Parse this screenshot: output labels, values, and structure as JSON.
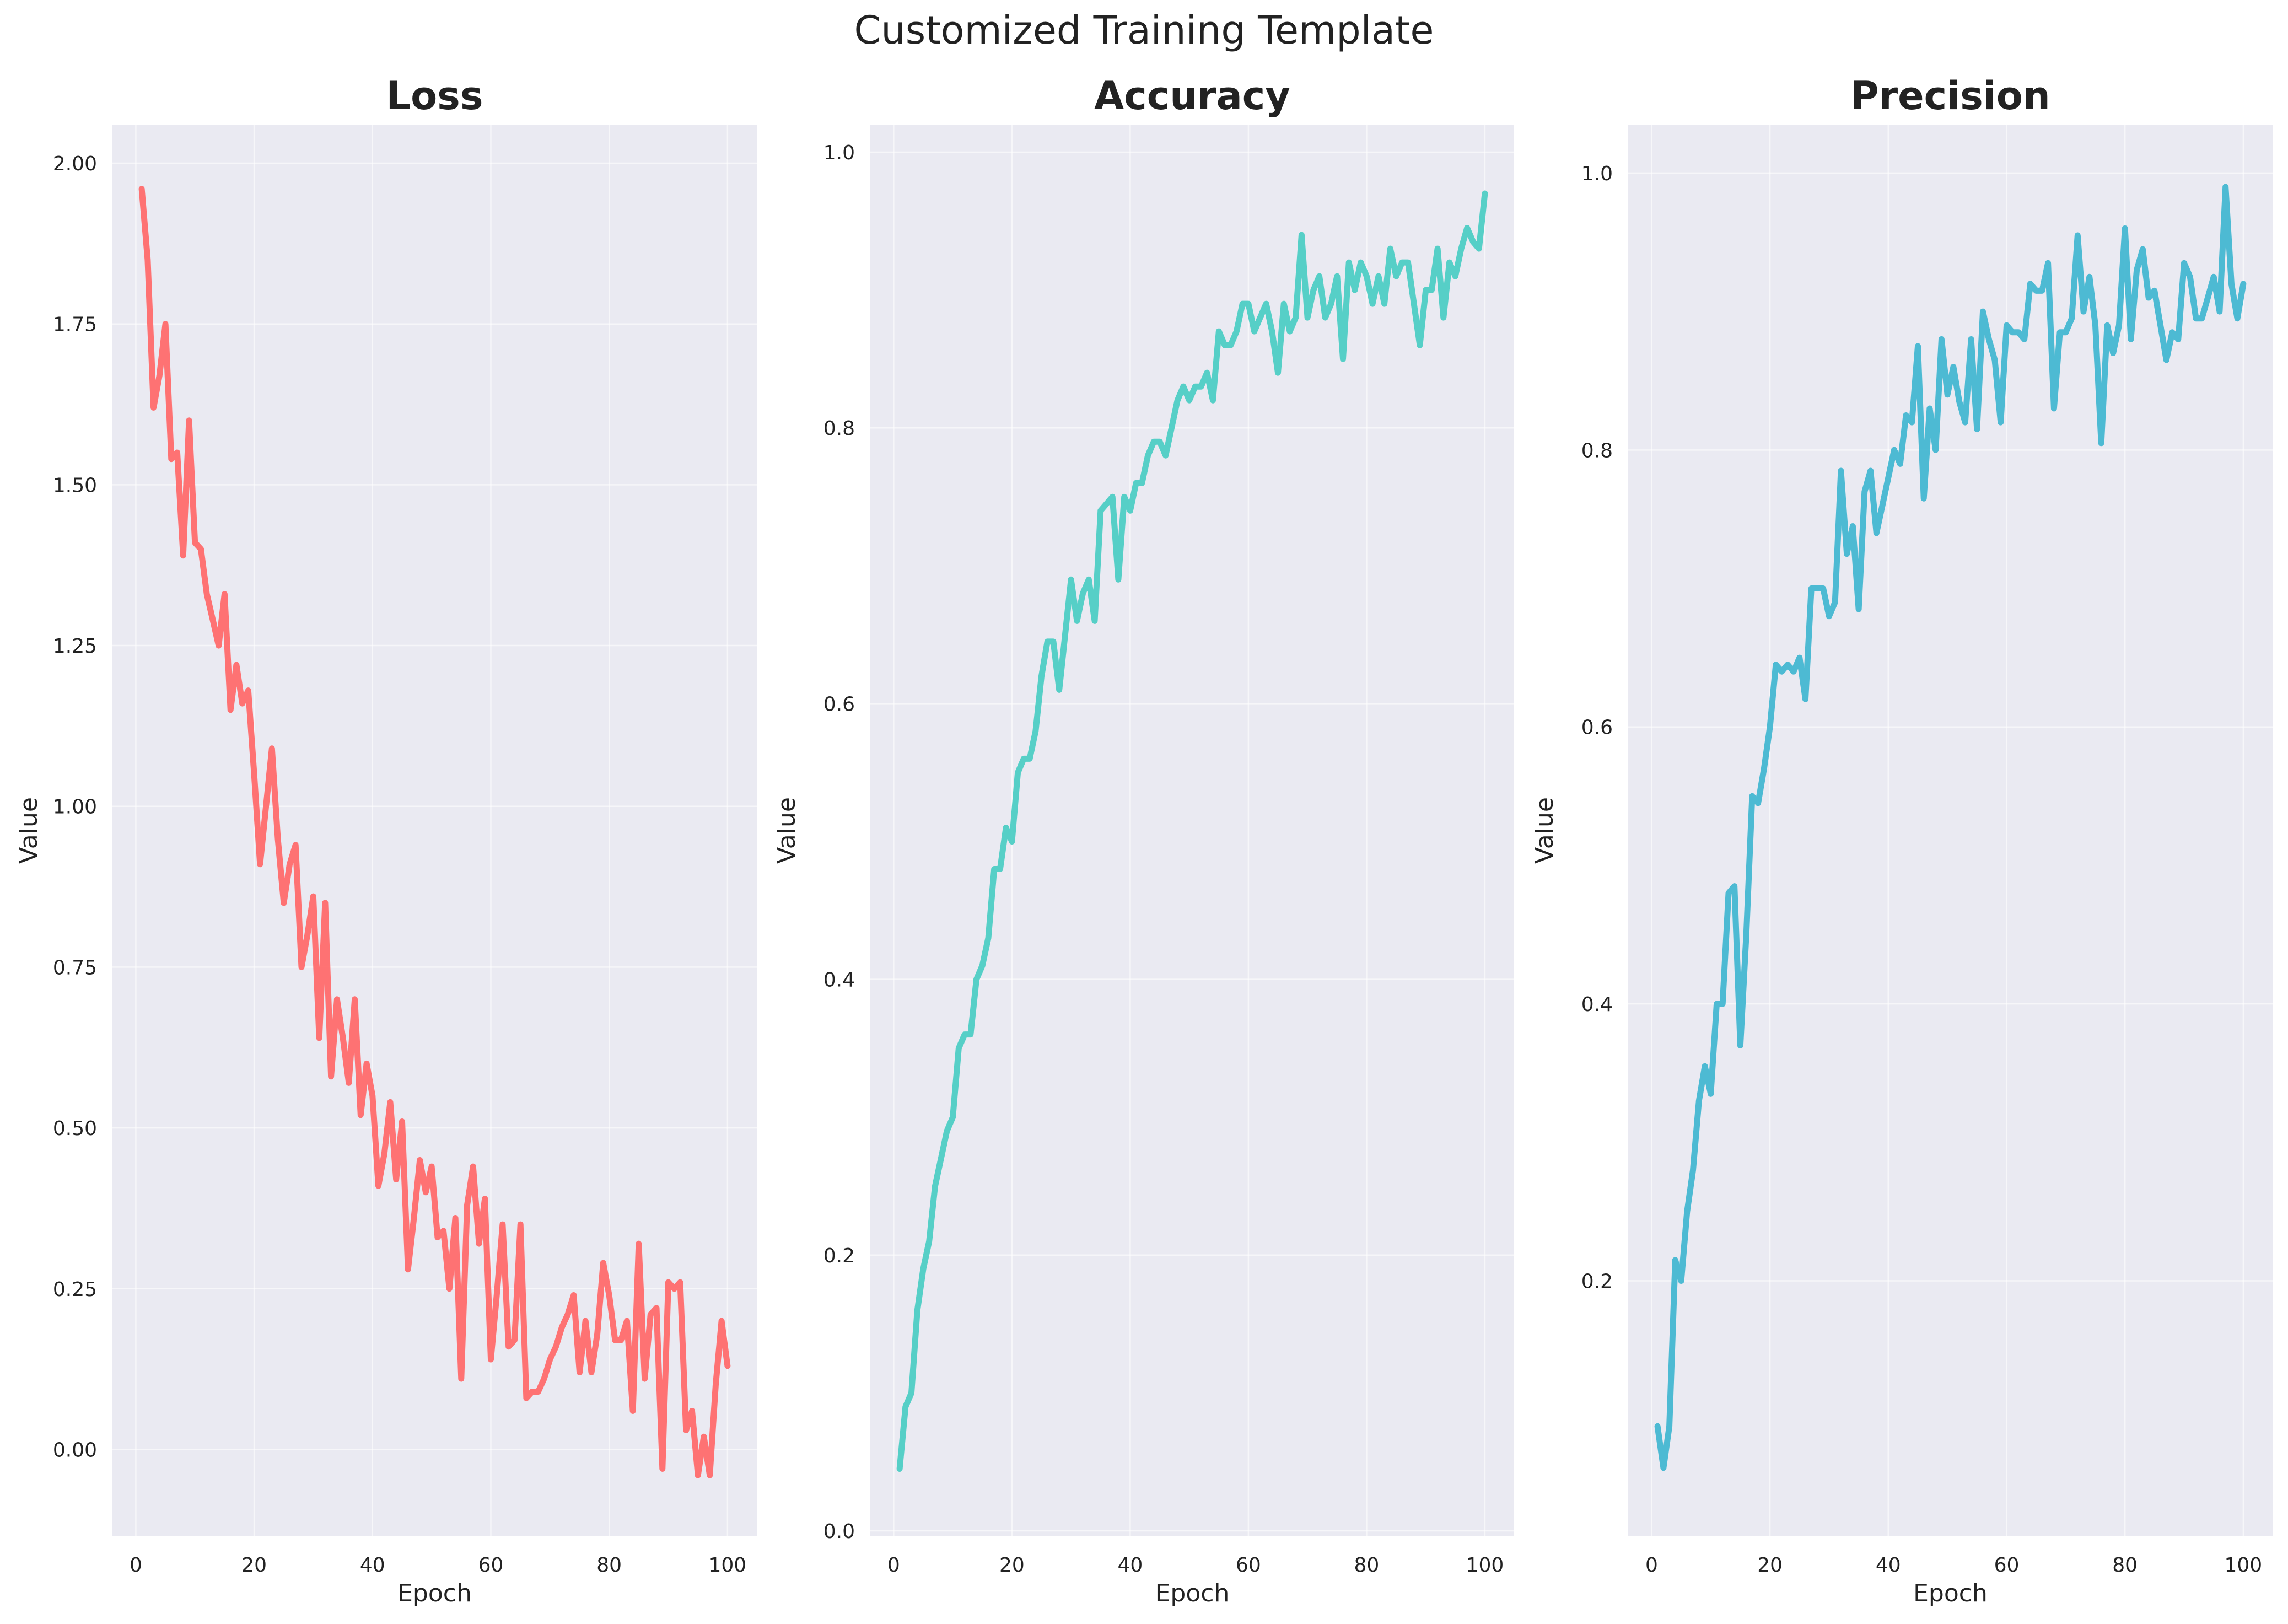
{
  "figure": {
    "suptitle": "Customized Training Template"
  },
  "chart_data": [
    {
      "type": "line",
      "title": "Loss",
      "xlabel": "Epoch",
      "ylabel": "Value",
      "color": "#ff6b6b",
      "grid": true,
      "xlim": [
        -3.95,
        104.95
      ],
      "ylim": [
        -0.135,
        2.06
      ],
      "xticks": [
        0,
        20,
        40,
        60,
        80,
        100
      ],
      "yticks": [
        0.0,
        0.25,
        0.5,
        0.75,
        1.0,
        1.25,
        1.5,
        1.75,
        2.0
      ],
      "ytick_labels": [
        "0.00",
        "0.25",
        "0.50",
        "0.75",
        "1.00",
        "1.25",
        "1.50",
        "1.75",
        "2.00"
      ],
      "x_start": 1,
      "values": [
        1.96,
        1.85,
        1.62,
        1.67,
        1.75,
        1.54,
        1.55,
        1.39,
        1.6,
        1.41,
        1.4,
        1.33,
        1.29,
        1.25,
        1.33,
        1.15,
        1.22,
        1.16,
        1.18,
        1.05,
        0.91,
        1.0,
        1.09,
        0.95,
        0.85,
        0.91,
        0.94,
        0.75,
        0.8,
        0.86,
        0.64,
        0.85,
        0.58,
        0.7,
        0.64,
        0.57,
        0.7,
        0.52,
        0.6,
        0.55,
        0.41,
        0.46,
        0.54,
        0.42,
        0.51,
        0.28,
        0.36,
        0.45,
        0.4,
        0.44,
        0.33,
        0.34,
        0.25,
        0.36,
        0.11,
        0.38,
        0.44,
        0.32,
        0.39,
        0.14,
        0.24,
        0.35,
        0.16,
        0.17,
        0.35,
        0.08,
        0.09,
        0.09,
        0.11,
        0.14,
        0.16,
        0.19,
        0.21,
        0.24,
        0.12,
        0.2,
        0.12,
        0.18,
        0.29,
        0.24,
        0.17,
        0.17,
        0.2,
        0.06,
        0.32,
        0.11,
        0.21,
        0.22,
        -0.03,
        0.26,
        0.25,
        0.26,
        0.03,
        0.06,
        -0.04,
        0.02,
        -0.04,
        0.1,
        0.2,
        0.13
      ]
    },
    {
      "type": "line",
      "title": "Accuracy",
      "xlabel": "Epoch",
      "ylabel": "Value",
      "color": "#4ecdc4",
      "grid": true,
      "xlim": [
        -3.95,
        104.95
      ],
      "ylim": [
        -0.004,
        1.02
      ],
      "xticks": [
        0,
        20,
        40,
        60,
        80,
        100
      ],
      "yticks": [
        0.0,
        0.2,
        0.4,
        0.6,
        0.8,
        1.0
      ],
      "ytick_labels": [
        "0.0",
        "0.2",
        "0.4",
        "0.6",
        "0.8",
        "1.0"
      ],
      "x_start": 1,
      "values": [
        0.045,
        0.09,
        0.1,
        0.16,
        0.19,
        0.21,
        0.25,
        0.27,
        0.29,
        0.3,
        0.35,
        0.36,
        0.36,
        0.4,
        0.41,
        0.43,
        0.48,
        0.48,
        0.51,
        0.5,
        0.55,
        0.56,
        0.56,
        0.58,
        0.62,
        0.645,
        0.645,
        0.61,
        0.65,
        0.69,
        0.66,
        0.68,
        0.69,
        0.66,
        0.74,
        0.745,
        0.75,
        0.69,
        0.75,
        0.74,
        0.76,
        0.76,
        0.78,
        0.79,
        0.79,
        0.78,
        0.8,
        0.82,
        0.83,
        0.82,
        0.83,
        0.83,
        0.84,
        0.82,
        0.87,
        0.86,
        0.86,
        0.87,
        0.89,
        0.89,
        0.87,
        0.88,
        0.89,
        0.87,
        0.84,
        0.89,
        0.87,
        0.88,
        0.94,
        0.88,
        0.9,
        0.91,
        0.88,
        0.89,
        0.91,
        0.85,
        0.92,
        0.9,
        0.92,
        0.91,
        0.89,
        0.91,
        0.89,
        0.93,
        0.91,
        0.92,
        0.92,
        0.89,
        0.86,
        0.9,
        0.9,
        0.93,
        0.88,
        0.92,
        0.91,
        0.93,
        0.945,
        0.935,
        0.93,
        0.97
      ]
    },
    {
      "type": "line",
      "title": "Precision",
      "xlabel": "Epoch",
      "ylabel": "Value",
      "color": "#45b7d1",
      "grid": true,
      "xlim": [
        -3.95,
        104.95
      ],
      "ylim": [
        0.0155,
        1.035
      ],
      "xticks": [
        0,
        20,
        40,
        60,
        80,
        100
      ],
      "yticks": [
        0.2,
        0.4,
        0.6,
        0.8,
        1.0
      ],
      "ytick_labels": [
        "0.2",
        "0.4",
        "0.6",
        "0.8",
        "1.0"
      ],
      "x_start": 1,
      "values": [
        0.095,
        0.065,
        0.095,
        0.215,
        0.2,
        0.25,
        0.28,
        0.33,
        0.355,
        0.335,
        0.4,
        0.4,
        0.48,
        0.485,
        0.37,
        0.45,
        0.55,
        0.545,
        0.57,
        0.6,
        0.645,
        0.64,
        0.645,
        0.64,
        0.65,
        0.62,
        0.7,
        0.7,
        0.7,
        0.68,
        0.69,
        0.785,
        0.725,
        0.745,
        0.685,
        0.77,
        0.785,
        0.74,
        0.76,
        0.78,
        0.8,
        0.79,
        0.825,
        0.82,
        0.875,
        0.765,
        0.83,
        0.8,
        0.88,
        0.84,
        0.86,
        0.835,
        0.82,
        0.88,
        0.815,
        0.9,
        0.88,
        0.865,
        0.82,
        0.89,
        0.885,
        0.885,
        0.88,
        0.92,
        0.915,
        0.915,
        0.935,
        0.83,
        0.885,
        0.885,
        0.895,
        0.955,
        0.9,
        0.925,
        0.89,
        0.805,
        0.89,
        0.87,
        0.89,
        0.96,
        0.88,
        0.93,
        0.945,
        0.91,
        0.915,
        0.89,
        0.865,
        0.885,
        0.88,
        0.935,
        0.925,
        0.895,
        0.895,
        0.91,
        0.925,
        0.9,
        0.99,
        0.92,
        0.895,
        0.92
      ]
    }
  ]
}
